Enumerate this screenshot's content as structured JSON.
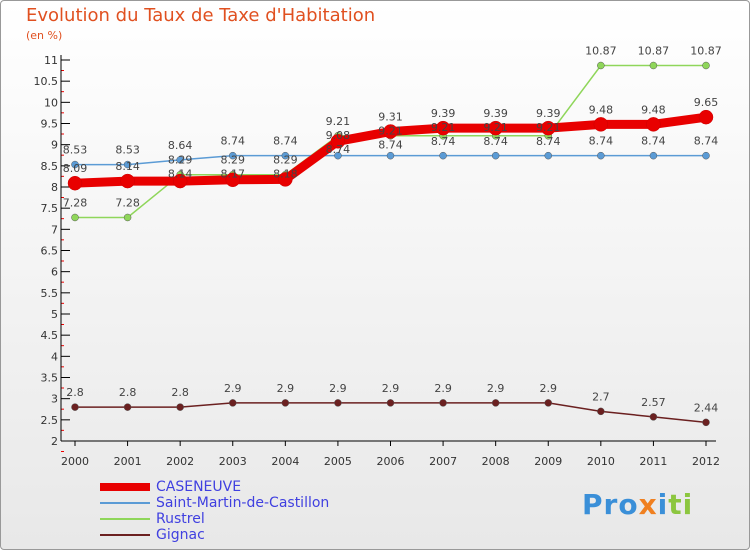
{
  "chart_data": {
    "type": "line",
    "title": "Evolution du Taux de Taxe d'Habitation",
    "subtitle": "(en %)",
    "x": [
      "2000",
      "2001",
      "2002",
      "2003",
      "2004",
      "2005",
      "2006",
      "2007",
      "2008",
      "2009",
      "2010",
      "2011",
      "2012"
    ],
    "ylim": [
      2,
      11
    ],
    "yticks": [
      "2",
      "2.5",
      "3",
      "3.5",
      "4",
      "4.5",
      "5",
      "5.5",
      "6",
      "6.5",
      "7",
      "7.5",
      "8",
      "8.5",
      "9",
      "9.5",
      "10",
      "10.5",
      "11"
    ],
    "series": [
      {
        "name": "CASENEUVE",
        "color": "#e80000",
        "values": [
          8.09,
          8.14,
          8.14,
          8.17,
          8.18,
          9.08,
          9.31,
          9.39,
          9.39,
          9.39,
          9.48,
          9.48,
          9.65
        ]
      },
      {
        "name": "Saint-Martin-de-Castillon",
        "color": "#5b9bd5",
        "values": [
          8.53,
          8.53,
          8.64,
          8.74,
          8.74,
          8.74,
          8.74,
          8.74,
          8.74,
          8.74,
          8.74,
          8.74,
          8.74
        ]
      },
      {
        "name": "Rustrel",
        "color": "#8fd65a",
        "values": [
          7.28,
          7.28,
          8.29,
          8.29,
          8.29,
          9.21,
          9.21,
          9.21,
          9.21,
          9.21,
          10.87,
          10.87,
          10.87
        ]
      },
      {
        "name": "Gignac",
        "color": "#6b2020",
        "values": [
          2.8,
          2.8,
          2.8,
          2.9,
          2.9,
          2.9,
          2.9,
          2.9,
          2.9,
          2.9,
          2.7,
          2.57,
          2.44
        ]
      }
    ]
  },
  "logo": "Proxiti"
}
